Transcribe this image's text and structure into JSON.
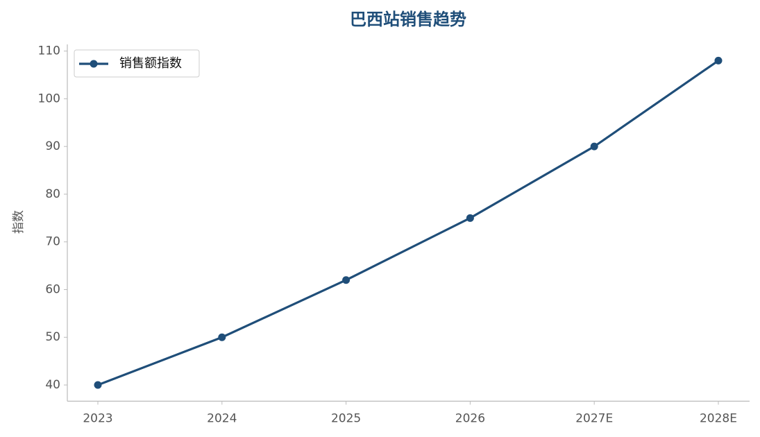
{
  "chart_data": {
    "type": "line",
    "title": "巴西站销售趋势",
    "y_label": "指数",
    "categories": [
      "2023",
      "2024",
      "2025",
      "2026",
      "2027E",
      "2028E"
    ],
    "series": [
      {
        "name": "销售额指数",
        "color": "#1f4e79",
        "values": [
          40,
          50,
          62,
          75,
          90,
          108
        ]
      }
    ],
    "ylim": [
      36.6,
      111.4
    ],
    "yticks": [
      40,
      50,
      60,
      70,
      80,
      90,
      100,
      110
    ],
    "grid": false,
    "legend": "upper left"
  }
}
